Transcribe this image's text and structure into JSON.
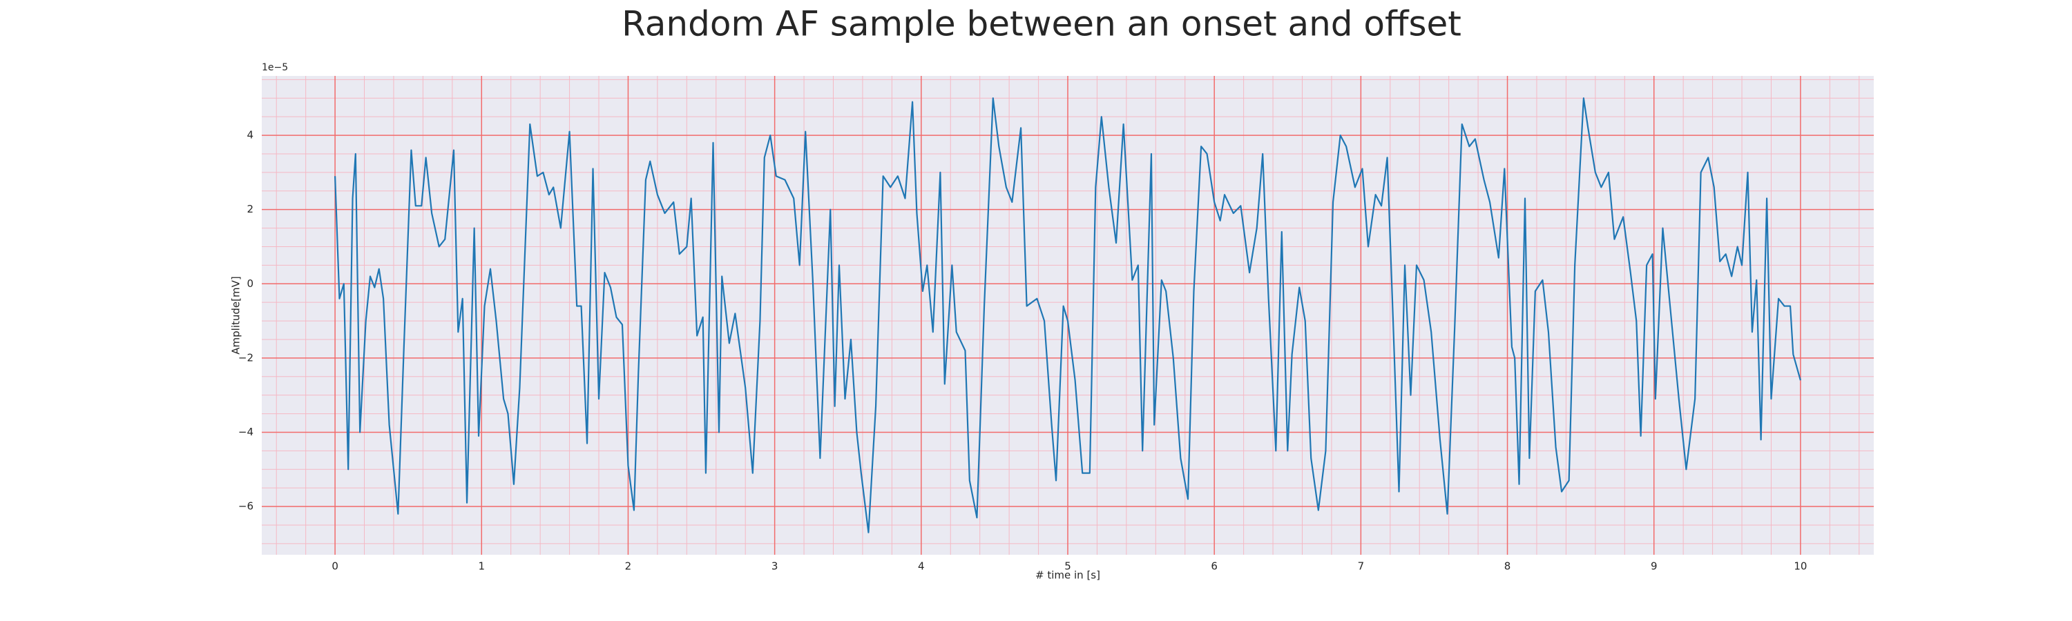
{
  "chart_data": {
    "type": "line",
    "title": "Random AF sample between an onset and offset",
    "xlabel": "# time in [s]",
    "ylabel": "Amplitude[mV]",
    "y_offset_text": "1e−5",
    "color": "#1f77b4",
    "background": "#eaeaf2",
    "grid": true,
    "grid_color": "#f26b6b",
    "minor_grid_color": "#f5b8c4",
    "xlim": [
      -0.5,
      10.5
    ],
    "ylim": [
      -7.3,
      5.6
    ],
    "xticks": [
      0,
      1,
      2,
      3,
      4,
      5,
      6,
      7,
      8,
      9,
      10
    ],
    "yticks": [
      {
        "value": -6,
        "label": "−6"
      },
      {
        "value": -4,
        "label": "−4"
      },
      {
        "value": -2,
        "label": "−2"
      },
      0,
      2,
      4
    ],
    "xminorticks": [
      -0.4,
      -0.2,
      0.2,
      0.4,
      0.6,
      0.8,
      1.2,
      1.4,
      1.6,
      1.8,
      2.2,
      2.4,
      2.6,
      2.8,
      3.2,
      3.4,
      3.6,
      3.8,
      4.2,
      4.4,
      4.6,
      4.8,
      5.2,
      5.4,
      5.6,
      5.8,
      6.2,
      6.4,
      6.6,
      6.8,
      7.2,
      7.4,
      7.6,
      7.8,
      8.2,
      8.4,
      8.6,
      8.8,
      9.2,
      9.4,
      9.6,
      9.8,
      10.2,
      10.4
    ],
    "yminorticks": [
      -7,
      -6.5,
      -5.5,
      -5,
      -4.5,
      -3.5,
      -3,
      -2.5,
      -1.5,
      -1,
      -0.5,
      0.5,
      1,
      1.5,
      2.5,
      3,
      3.5,
      4.5,
      5,
      5.5
    ],
    "x": [
      0.0,
      0.03,
      0.06,
      0.09,
      0.12,
      0.14,
      0.17,
      0.21,
      0.24,
      0.27,
      0.3,
      0.33,
      0.37,
      0.43,
      0.47,
      0.52,
      0.55,
      0.59,
      0.62,
      0.66,
      0.71,
      0.75,
      0.81,
      0.84,
      0.87,
      0.9,
      0.95,
      0.98,
      1.02,
      1.06,
      1.1,
      1.15,
      1.18,
      1.22,
      1.26,
      1.33,
      1.38,
      1.42,
      1.46,
      1.49,
      1.54,
      1.6,
      1.65,
      1.68,
      1.72,
      1.76,
      1.8,
      1.84,
      1.88,
      1.92,
      1.96,
      2.0,
      2.04,
      2.07,
      2.12,
      2.15,
      2.2,
      2.25,
      2.31,
      2.35,
      2.4,
      2.43,
      2.47,
      2.51,
      2.53,
      2.58,
      2.62,
      2.64,
      2.69,
      2.73,
      2.8,
      2.85,
      2.9,
      2.93,
      2.97,
      3.01,
      3.07,
      3.13,
      3.17,
      3.21,
      3.26,
      3.31,
      3.38,
      3.41,
      3.44,
      3.48,
      3.52,
      3.56,
      3.59,
      3.64,
      3.69,
      3.74,
      3.79,
      3.84,
      3.89,
      3.94,
      3.97,
      4.01,
      4.04,
      4.08,
      4.13,
      4.16,
      4.21,
      4.24,
      4.3,
      4.33,
      4.38,
      4.43,
      4.49,
      4.53,
      4.58,
      4.62,
      4.68,
      4.72,
      4.79,
      4.84,
      4.89,
      4.92,
      4.97,
      5.0,
      5.05,
      5.1,
      5.15,
      5.19,
      5.23,
      5.28,
      5.33,
      5.38,
      5.44,
      5.48,
      5.51,
      5.57,
      5.59,
      5.64,
      5.67,
      5.72,
      5.77,
      5.82,
      5.86,
      5.91,
      5.95,
      6.0,
      6.04,
      6.07,
      6.13,
      6.18,
      6.24,
      6.29,
      6.33,
      6.37,
      6.42,
      6.46,
      6.5,
      6.53,
      6.58,
      6.62,
      6.66,
      6.71,
      6.76,
      6.81,
      6.86,
      6.9,
      6.96,
      7.01,
      7.05,
      7.1,
      7.14,
      7.18,
      7.22,
      7.26,
      7.3,
      7.34,
      7.38,
      7.43,
      7.48,
      7.54,
      7.59,
      7.64,
      7.69,
      7.74,
      7.78,
      7.84,
      7.88,
      7.94,
      7.98,
      8.03,
      8.05,
      8.08,
      8.12,
      8.15,
      8.19,
      8.24,
      8.28,
      8.33,
      8.37,
      8.42,
      8.46,
      8.52,
      8.55,
      8.6,
      8.64,
      8.69,
      8.73,
      8.79,
      8.84,
      8.88,
      8.91,
      8.95,
      8.99,
      9.01,
      9.06,
      9.11,
      9.17,
      9.22,
      9.28,
      9.32,
      9.37,
      9.41,
      9.45,
      9.49,
      9.53,
      9.57,
      9.6,
      9.64,
      9.67,
      9.7,
      9.73,
      9.77,
      9.8,
      9.85,
      9.89,
      9.93,
      9.95,
      10.0
    ],
    "values": [
      2.9,
      -0.4,
      0,
      -5.0,
      2.3,
      3.5,
      -4.0,
      -1,
      0.2,
      -0.1,
      0.4,
      -0.4,
      -3.8,
      -6.2,
      -1.7,
      3.6,
      2.1,
      2.1,
      3.4,
      1.9,
      1.0,
      1.2,
      3.6,
      -1.3,
      -0.4,
      -5.9,
      1.5,
      -4.1,
      -0.6,
      0.4,
      -1,
      -3.1,
      -3.5,
      -5.4,
      -2.8,
      4.3,
      2.9,
      3.0,
      2.4,
      2.6,
      1.5,
      4.1,
      -0.6,
      -0.6,
      -4.3,
      3.1,
      -3.1,
      0.3,
      -0.1,
      -0.9,
      -1.1,
      -4.9,
      -6.1,
      -2.4,
      2.8,
      3.3,
      2.4,
      1.9,
      2.2,
      0.8,
      1.0,
      2.3,
      -1.4,
      -0.9,
      -5.1,
      3.8,
      -4.0,
      0.2,
      -1.6,
      -0.8,
      -2.8,
      -5.1,
      -1,
      3.4,
      4.0,
      2.9,
      2.8,
      2.3,
      0.5,
      4.1,
      0.1,
      -4.7,
      2.0,
      -3.3,
      0.5,
      -3.1,
      -1.5,
      -4.0,
      -5.1,
      -6.7,
      -3.3,
      2.9,
      2.6,
      2.9,
      2.3,
      4.9,
      1.9,
      -0.2,
      0.5,
      -1.3,
      3.0,
      -2.7,
      0.5,
      -1.3,
      -1.8,
      -5.3,
      -6.3,
      -0.6,
      5.0,
      3.7,
      2.6,
      2.2,
      4.2,
      -0.6,
      -0.4,
      -1,
      -3.8,
      -5.3,
      -0.6,
      -1.0,
      -2.6,
      -5.1,
      -5.1,
      2.6,
      4.5,
      2.6,
      1.1,
      4.3,
      0.1,
      0.5,
      -4.5,
      3.5,
      -3.8,
      0.1,
      -0.2,
      -2.0,
      -4.7,
      -5.8,
      -0.2,
      3.7,
      3.5,
      2.2,
      1.7,
      2.4,
      1.9,
      2.1,
      0.3,
      1.5,
      3.5,
      -0.4,
      -4.5,
      1.4,
      -4.5,
      -1.9,
      -0.1,
      -1,
      -4.7,
      -6.1,
      -4.5,
      2.2,
      4.0,
      3.7,
      2.6,
      3.1,
      1.0,
      2.4,
      2.1,
      3.4,
      -1,
      -5.6,
      0.5,
      -3.0,
      0.5,
      0.1,
      -1.3,
      -4.2,
      -6.2,
      -1.2,
      4.3,
      3.7,
      3.9,
      2.8,
      2.2,
      0.7,
      3.1,
      -1.7,
      -2.0,
      -5.4,
      2.3,
      -4.7,
      -0.2,
      0.1,
      -1.3,
      -4.4,
      -5.6,
      -5.3,
      0.5,
      5.0,
      4.2,
      3.0,
      2.6,
      3.0,
      1.2,
      1.8,
      0.3,
      -1.0,
      -4.1,
      0.5,
      0.8,
      -3.1,
      1.5,
      -0.6,
      -3.1,
      -5.0,
      -3.1,
      3.0,
      3.4,
      2.6,
      0.6,
      0.8,
      0.2,
      1.0,
      0.5,
      3.0,
      -1.3,
      0.1,
      -4.2,
      2.3,
      -3.1,
      -0.4,
      -0.6,
      -0.6,
      -1.9,
      -2.6
    ]
  }
}
